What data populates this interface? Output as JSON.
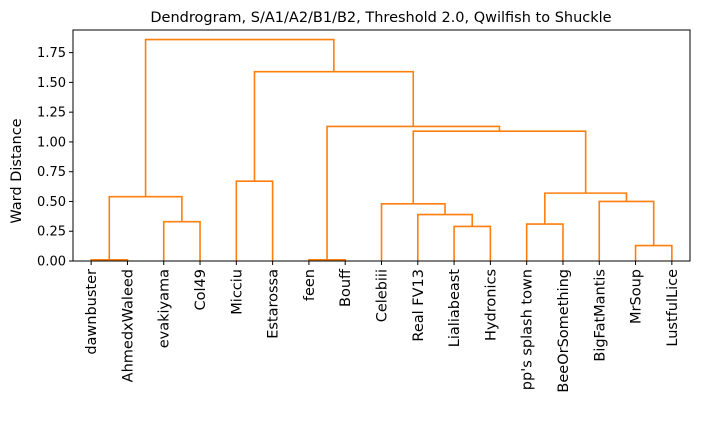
{
  "chart_data": {
    "type": "dendrogram",
    "title": "Dendrogram, S/A1/A2/B1/B2, Threshold 2.0, Qwilfish to Shuckle",
    "xlabel": "",
    "ylabel": "Ward Distance",
    "ylim": [
      0,
      1.94
    ],
    "yticks": [
      "0.00",
      "0.25",
      "0.50",
      "0.75",
      "1.00",
      "1.25",
      "1.50",
      "1.75"
    ],
    "link_color": "#ff7f0e",
    "leaves": [
      "dawnbuster",
      "AhmedxWaleed",
      "evakiyama",
      "Col49",
      "Micciu",
      "Estarossa",
      "feen",
      "Bouff",
      "Celebiii",
      "Real FV13",
      "Lialiabeast",
      "Hydronics",
      "pp's splash town",
      "BeeOrSomething",
      "BigFatMantis",
      "MrSoup",
      "LustfulLice"
    ],
    "merges": [
      {
        "left": "dawnbuster",
        "right": "AhmedxWaleed",
        "height": 0.01
      },
      {
        "left": "evakiyama",
        "right": "Col49",
        "height": 0.33
      },
      {
        "left": "dawnbuster+AhmedxWaleed",
        "right": "evakiyama+Col49",
        "height": 0.54
      },
      {
        "left": "Micciu",
        "right": "Estarossa",
        "height": 0.67
      },
      {
        "left": "feen",
        "right": "Bouff",
        "height": 0.01
      },
      {
        "left": "Lialiabeast",
        "right": "Hydronics",
        "height": 0.29
      },
      {
        "left": "Real FV13",
        "right": "Lialiabeast+Hydronics",
        "height": 0.39
      },
      {
        "left": "Celebiii",
        "right": "Real FV13+Lialiabeast+Hydronics",
        "height": 0.48
      },
      {
        "left": "pp's splash town",
        "right": "BeeOrSomething",
        "height": 0.31
      },
      {
        "left": "MrSoup",
        "right": "LustfulLice",
        "height": 0.13
      },
      {
        "left": "BigFatMantis",
        "right": "MrSoup+LustfulLice",
        "height": 0.5
      },
      {
        "left": "pp's splash town+BeeOrSomething",
        "right": "BigFatMantis+MrSoup+LustfulLice",
        "height": 0.57
      },
      {
        "left": "Celebiii cluster",
        "right": "pp's splash town cluster",
        "height": 1.09
      },
      {
        "left": "feen+Bouff",
        "right": "Celebiii..LustfulLice",
        "height": 1.13
      },
      {
        "left": "Micciu+Estarossa",
        "right": "feen..LustfulLice",
        "height": 1.59
      },
      {
        "left": "dawnbuster..Col49",
        "right": "Micciu..LustfulLice",
        "height": 1.86
      }
    ]
  }
}
